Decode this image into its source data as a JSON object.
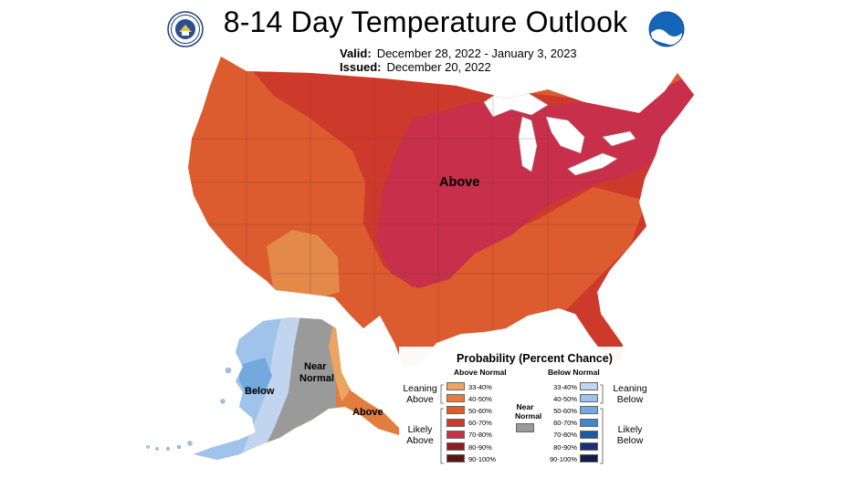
{
  "header": {
    "title": "8-14 Day Temperature Outlook",
    "valid_label": "Valid:",
    "valid_value": "December 28, 2022 - January 3, 2023",
    "issued_label": "Issued:",
    "issued_value": "December 20, 2022",
    "logo_left": "commerce-seal-icon",
    "logo_right": "noaa-logo-icon"
  },
  "map_labels": {
    "contiguous": "Above",
    "alaska_below": "Below",
    "alaska_near_line1": "Near",
    "alaska_near_line2": "Normal",
    "alaska_above": "Above"
  },
  "legend": {
    "title": "Probability (Percent Chance)",
    "above_header": "Above Normal",
    "below_header": "Below Normal",
    "near_header_line1": "Near",
    "near_header_line2": "Normal",
    "leaning_above_1": "Leaning",
    "leaning_above_2": "Above",
    "likely_above_1": "Likely",
    "likely_above_2": "Above",
    "leaning_below_1": "Leaning",
    "leaning_below_2": "Below",
    "likely_below_1": "Likely",
    "likely_below_2": "Below",
    "above": [
      {
        "range": "33-40%",
        "color": "#eca561"
      },
      {
        "range": "40-50%",
        "color": "#e17e3d"
      },
      {
        "range": "50-60%",
        "color": "#dc5b2f"
      },
      {
        "range": "60-70%",
        "color": "#cd3a2b"
      },
      {
        "range": "70-80%",
        "color": "#c72f4a"
      },
      {
        "range": "80-90%",
        "color": "#8c1f24"
      },
      {
        "range": "90-100%",
        "color": "#5a1414"
      }
    ],
    "below": [
      {
        "range": "33-40%",
        "color": "#c2d5ee"
      },
      {
        "range": "40-50%",
        "color": "#9fc3ea"
      },
      {
        "range": "50-60%",
        "color": "#74a9de"
      },
      {
        "range": "60-70%",
        "color": "#3f88cc"
      },
      {
        "range": "70-80%",
        "color": "#1f5aa0"
      },
      {
        "range": "80-90%",
        "color": "#1b2f78"
      },
      {
        "range": "90-100%",
        "color": "#141c4e"
      }
    ],
    "near_color": "#9a9a9a"
  }
}
